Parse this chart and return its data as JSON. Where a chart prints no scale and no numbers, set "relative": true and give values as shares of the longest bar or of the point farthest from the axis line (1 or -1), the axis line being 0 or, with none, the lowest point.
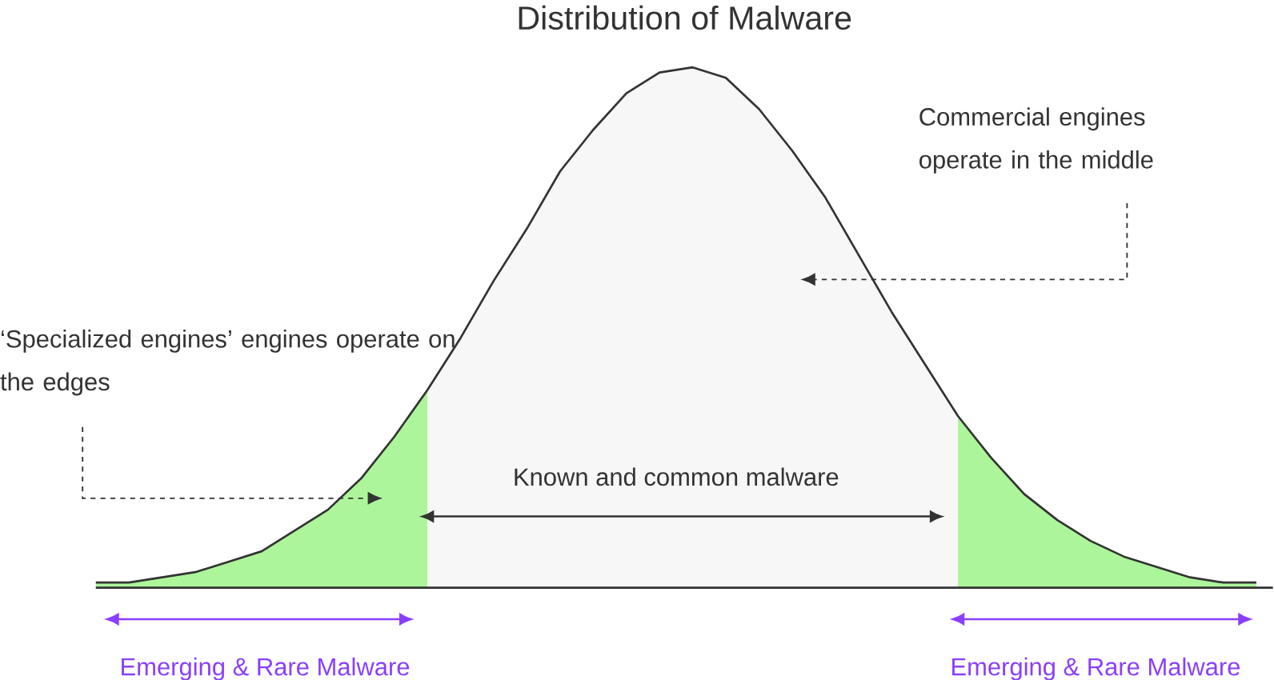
{
  "chart_data": {
    "type": "area",
    "title": "Distribution of Malware",
    "relative": true,
    "categories": [
      null,
      null,
      null,
      null,
      null,
      null,
      null,
      null,
      null,
      null,
      null,
      null,
      null,
      null,
      null,
      null,
      null,
      null,
      null,
      null,
      null,
      null,
      null,
      null,
      null,
      null,
      null,
      null,
      null,
      null,
      null,
      null,
      null,
      null,
      null,
      null
    ],
    "series": [
      {
        "color": "#adf59b",
        "values": [
          0.01,
          0.01,
          0.02,
          0.03,
          0.05,
          0.07,
          0.11,
          0.15,
          0.21,
          0.29,
          0.38,
          null,
          null,
          null,
          null,
          null,
          null,
          null,
          null,
          null,
          null,
          null,
          null,
          null,
          null,
          null,
          null,
          null,
          null,
          null,
          null,
          null,
          null,
          null,
          null,
          null
        ]
      },
      {
        "color": "#f7f7f7",
        "values": [
          null,
          null,
          null,
          null,
          null,
          null,
          null,
          null,
          null,
          null,
          0.38,
          0.48,
          0.59,
          0.69,
          0.8,
          0.88,
          0.95,
          0.99,
          1,
          0.98,
          0.92,
          0.84,
          0.75,
          0.64,
          0.53,
          0.43,
          0.33,
          null,
          null,
          null,
          null,
          null,
          null,
          null,
          null,
          null
        ]
      },
      {
        "color": "#adf59b",
        "values": [
          null,
          null,
          null,
          null,
          null,
          null,
          null,
          null,
          null,
          null,
          null,
          null,
          null,
          null,
          null,
          null,
          null,
          null,
          null,
          null,
          null,
          null,
          null,
          null,
          null,
          null,
          0.33,
          0.25,
          0.18,
          0.13,
          0.09,
          0.06,
          0.04,
          0.02,
          0.01,
          0.01
        ]
      },
      {
        "type": "line",
        "color": "#333333",
        "values": [
          0.01,
          0.01,
          0.02,
          0.03,
          0.05,
          0.07,
          0.11,
          0.15,
          0.21,
          0.29,
          0.38,
          0.48,
          0.59,
          0.69,
          0.8,
          0.88,
          0.95,
          0.99,
          1,
          0.98,
          0.92,
          0.84,
          0.75,
          0.64,
          0.53,
          0.43,
          0.33,
          0.25,
          0.18,
          0.13,
          0.09,
          0.06,
          0.04,
          0.02,
          0.01,
          0.01
        ]
      }
    ],
    "annotations": [
      "Commercial engines operate in the middle",
      "‘Specialized engines’ engines operate on the edges",
      "Known and common malware",
      "Emerging & Rare Malware",
      "Emerging & Rare Malware"
    ]
  }
}
